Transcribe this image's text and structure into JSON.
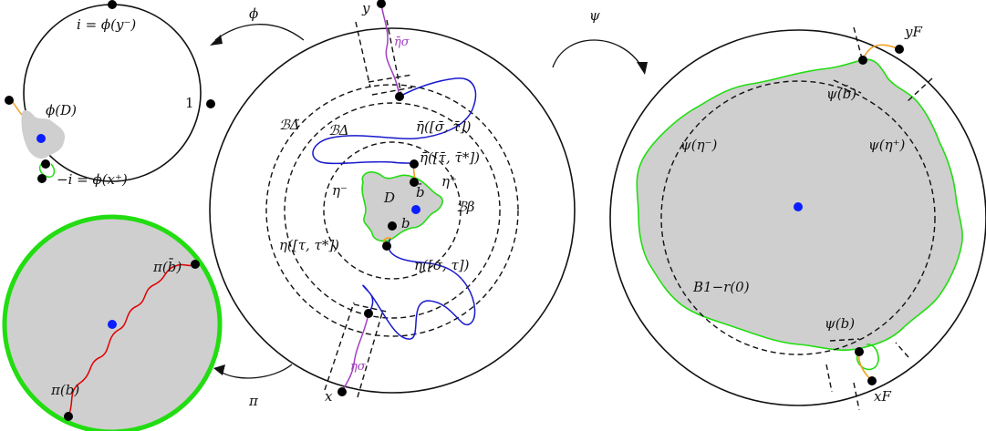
{
  "colors": {
    "gray_region": "#cfcfcf",
    "green_boundary": "#22dd11",
    "blue_curve": "#1a1acc",
    "orange_curve": "#f0a020",
    "purple_curve": "#a040c0",
    "red_curve": "#e00000",
    "center_dot": "#0a1eff",
    "marked_point": "#000000"
  },
  "maps": {
    "phi": "ϕ",
    "psi": "ψ",
    "pi": "π"
  },
  "top_left_disk": {
    "top_label": "i = ϕ(y⁻)",
    "right_label": "1",
    "region_label": "ϕ(D)",
    "bottom_label": "−i = ϕ(x⁺)"
  },
  "bottom_left_disk": {
    "top_point_label": "π(b̄)",
    "bottom_point_label": "π(b)"
  },
  "center_disk": {
    "y_label": "y",
    "x_label": "x",
    "eta_sigma_bar": "η̄σ",
    "eta_sigma": "ησ",
    "ball_delta_tilde": "ℬΔ̃",
    "ball_delta": "ℬΔ",
    "ball_beta": "ℬβ",
    "eta_bar_sigma_tau": "η̄([σ̄, τ̄])",
    "eta_bar_tau_tau_star": "η̄([τ̄, τ̄*])",
    "eta_tau_tau_star": "η([τ, τ*])",
    "eta_sigma_tau": "η([σ, τ])",
    "eta_minus": "η⁻",
    "eta_plus": "η⁺",
    "D": "D",
    "b_bar": "b̄",
    "b": "b"
  },
  "right_disk": {
    "y_label": "yF",
    "x_label": "xF",
    "psi_b_bar": "ψ(b̄)",
    "psi_b": "ψ(b)",
    "psi_eta_minus": "ψ(η⁻)",
    "psi_eta_plus": "ψ(η⁺)",
    "ball_label": "B1−r(0)"
  }
}
